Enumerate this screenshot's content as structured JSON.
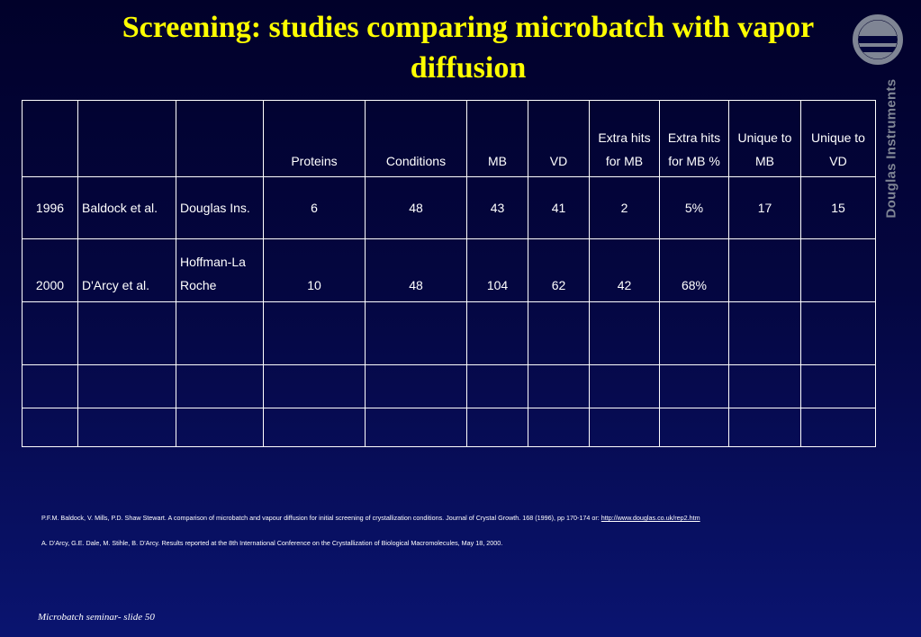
{
  "slide": {
    "title": "Screening: studies comparing microbatch with vapor diffusion",
    "brand_text": "Douglas Instruments",
    "footer": "Microbatch seminar- slide 50",
    "colors": {
      "title": "#ffff00",
      "background_top": "#01012a",
      "background_bottom": "#0a1470",
      "brand_gray": "#7f8594"
    },
    "logo_icon": "douglas-instruments-logo-icon"
  },
  "table": {
    "headers": [
      "",
      "",
      "",
      "Proteins",
      "Conditions",
      "MB",
      "VD",
      "Extra hits for MB",
      "Extra hits for MB %",
      "Unique to MB",
      "Unique to VD"
    ],
    "rows": [
      [
        "1996",
        "Baldock et al.",
        "Douglas Ins.",
        "6",
        "48",
        "43",
        "41",
        "2",
        "5%",
        "17",
        "15"
      ],
      [
        "2000",
        "D'Arcy et al.",
        "Hoffman-La Roche",
        "10",
        "48",
        "104",
        "62",
        "42",
        "68%",
        "",
        ""
      ],
      [
        "",
        "",
        "",
        "",
        "",
        "",
        "",
        "",
        "",
        "",
        ""
      ],
      [
        "",
        "",
        "",
        "",
        "",
        "",
        "",
        "",
        "",
        "",
        ""
      ],
      [
        "",
        "",
        "",
        "",
        "",
        "",
        "",
        "",
        "",
        "",
        ""
      ]
    ]
  },
  "references": [
    {
      "text": "P.F.M. Baldock, V. Mills, P.D. Shaw Stewart. A comparison of microbatch and vapour diffusion for initial screening of crystallization conditions. Journal of Crystal Growth. 168 (1996), pp 170-174 or: ",
      "link": "http://www.douglas.co.uk/rep2.htm"
    },
    {
      "text": "A. D'Arcy, G.E. Dale, M. Stihle, B. D'Arcy.  Results reported at the 8th International Conference on the Crystallization of Biological Macromolecules, May 18, 2000.",
      "link": ""
    }
  ]
}
